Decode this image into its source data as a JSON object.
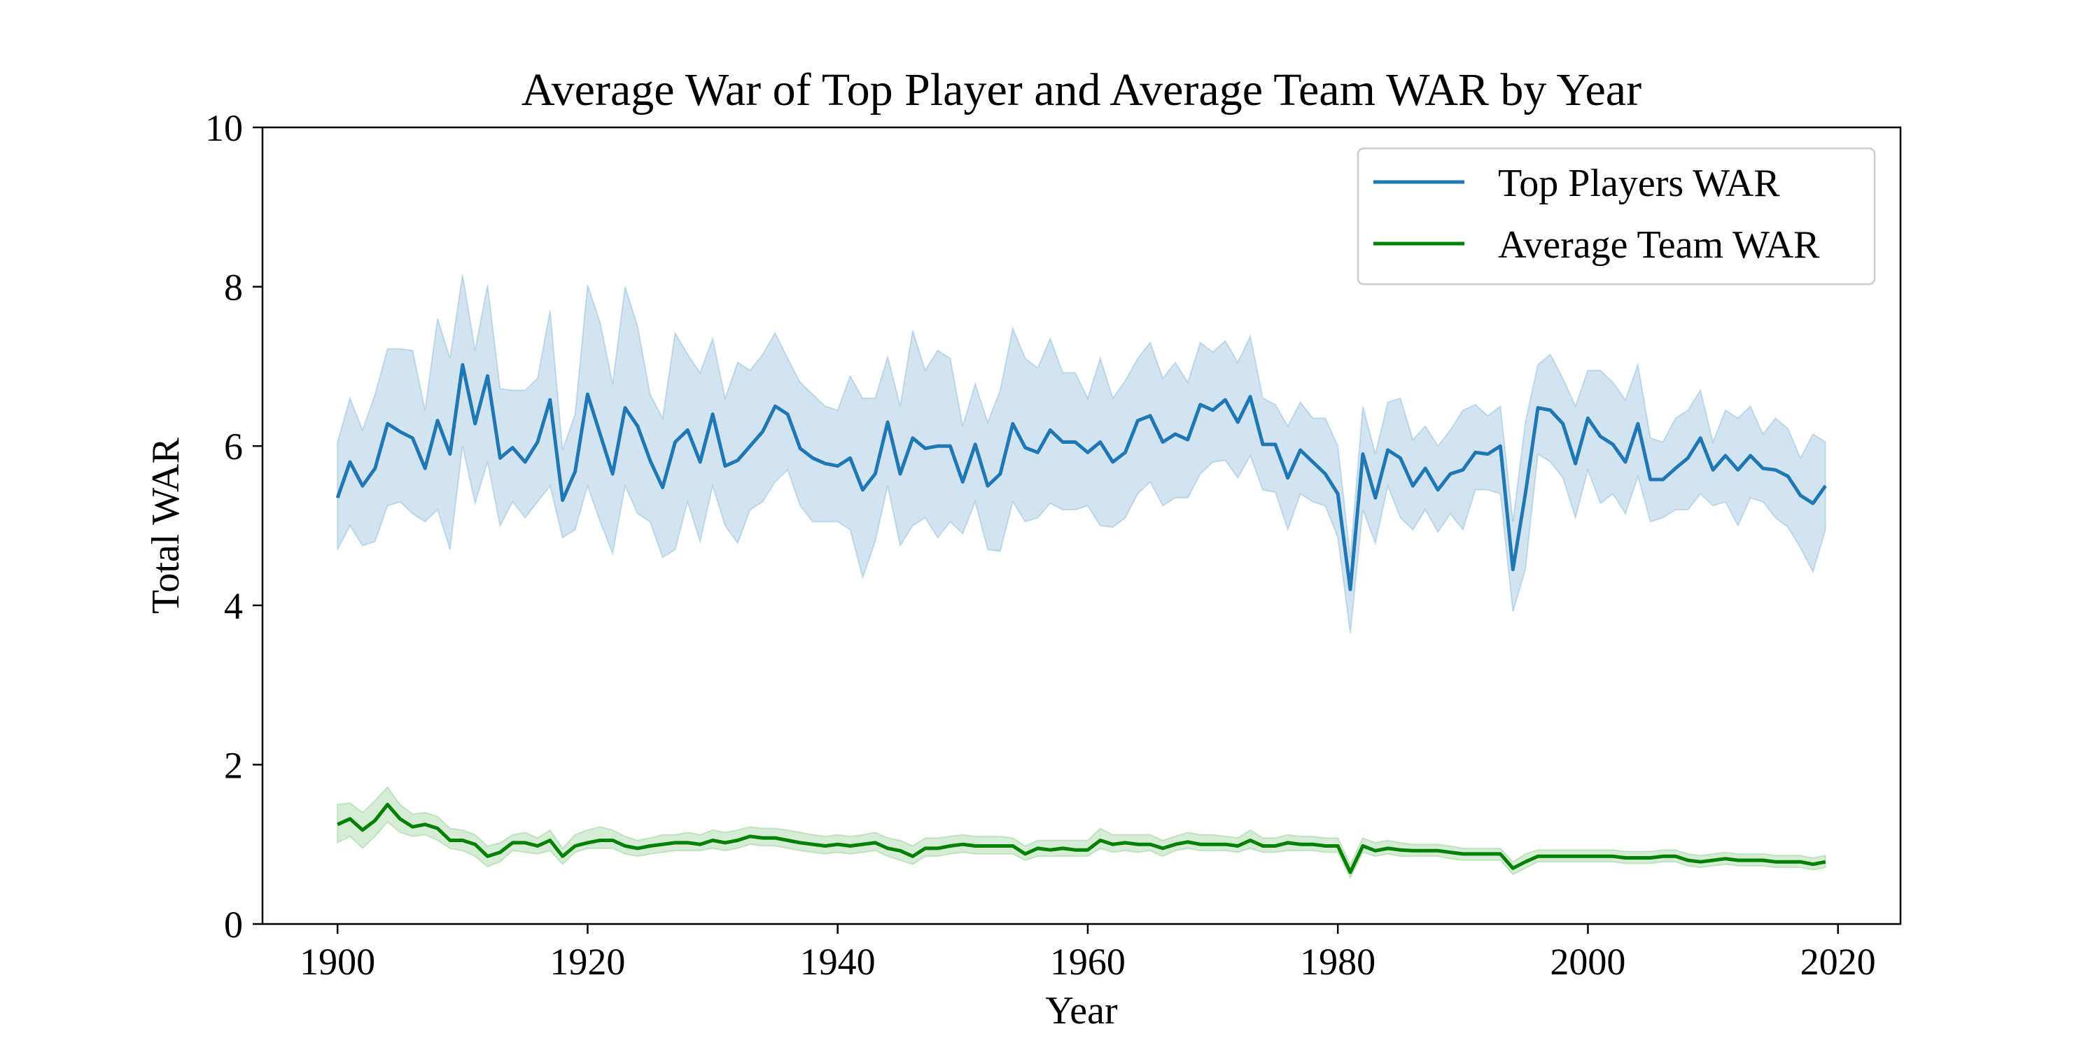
{
  "chart_data": {
    "type": "line",
    "title": "Average War of Top Player and Average Team WAR by Year",
    "xlabel": "Year",
    "ylabel": "Total WAR",
    "xlim": [
      1894,
      2025
    ],
    "ylim": [
      0,
      10
    ],
    "xticks": [
      1900,
      1920,
      1940,
      1960,
      1980,
      2000,
      2020
    ],
    "yticks": [
      0,
      2,
      4,
      6,
      8,
      10
    ],
    "grid": false,
    "legend": {
      "placement": "top-right",
      "entries": [
        "Top Players WAR",
        "Average Team WAR"
      ]
    },
    "x": [
      1900,
      1901,
      1902,
      1903,
      1904,
      1905,
      1906,
      1907,
      1908,
      1909,
      1910,
      1911,
      1912,
      1913,
      1914,
      1915,
      1916,
      1917,
      1918,
      1919,
      1920,
      1921,
      1922,
      1923,
      1924,
      1925,
      1926,
      1927,
      1928,
      1929,
      1930,
      1931,
      1932,
      1933,
      1934,
      1935,
      1936,
      1937,
      1938,
      1939,
      1940,
      1941,
      1942,
      1943,
      1944,
      1945,
      1946,
      1947,
      1948,
      1949,
      1950,
      1951,
      1952,
      1953,
      1954,
      1955,
      1956,
      1957,
      1958,
      1959,
      1960,
      1961,
      1962,
      1963,
      1964,
      1965,
      1966,
      1967,
      1968,
      1969,
      1970,
      1971,
      1972,
      1973,
      1974,
      1975,
      1976,
      1977,
      1978,
      1979,
      1980,
      1981,
      1982,
      1983,
      1984,
      1985,
      1986,
      1987,
      1988,
      1989,
      1990,
      1991,
      1992,
      1993,
      1994,
      1995,
      1996,
      1997,
      1998,
      1999,
      2000,
      2001,
      2002,
      2003,
      2004,
      2005,
      2006,
      2007,
      2008,
      2009,
      2010,
      2011,
      2012,
      2013,
      2014,
      2015,
      2016,
      2017,
      2018,
      2019
    ],
    "series": [
      {
        "name": "Top Players WAR",
        "color": "#1f77b4",
        "band_color": "#1f77b4",
        "values": [
          5.35,
          5.8,
          5.5,
          5.72,
          6.28,
          6.18,
          6.1,
          5.72,
          6.32,
          5.9,
          7.02,
          6.28,
          6.88,
          5.85,
          5.98,
          5.8,
          6.05,
          6.58,
          5.32,
          5.68,
          6.65,
          6.15,
          5.65,
          6.48,
          6.25,
          5.82,
          5.48,
          6.05,
          6.2,
          5.8,
          6.4,
          5.75,
          5.82,
          6.0,
          6.18,
          6.5,
          6.4,
          5.97,
          5.85,
          5.78,
          5.75,
          5.85,
          5.45,
          5.65,
          6.3,
          5.65,
          6.1,
          5.97,
          6.0,
          6.0,
          5.55,
          6.02,
          5.5,
          5.65,
          6.28,
          5.98,
          5.92,
          6.2,
          6.05,
          6.05,
          5.92,
          6.05,
          5.8,
          5.92,
          6.32,
          6.38,
          6.05,
          6.15,
          6.08,
          6.52,
          6.45,
          6.58,
          6.3,
          6.62,
          6.02,
          6.02,
          5.6,
          5.95,
          5.8,
          5.65,
          5.4,
          4.2,
          5.9,
          5.35,
          5.95,
          5.85,
          5.5,
          5.72,
          5.45,
          5.65,
          5.7,
          5.92,
          5.9,
          6.0,
          4.45,
          5.4,
          6.48,
          6.45,
          6.28,
          5.78,
          6.35,
          6.12,
          6.02,
          5.8,
          6.28,
          5.58,
          5.58,
          5.72,
          5.85,
          6.1,
          5.7,
          5.88,
          5.7,
          5.88,
          5.72,
          5.7,
          5.62,
          5.38,
          5.28,
          5.5
        ],
        "lower": [
          4.7,
          5.0,
          4.75,
          4.8,
          5.25,
          5.3,
          5.15,
          5.05,
          5.2,
          4.7,
          6.0,
          5.28,
          5.8,
          5.0,
          5.3,
          5.1,
          5.3,
          5.5,
          4.85,
          4.95,
          5.5,
          5.05,
          4.65,
          5.5,
          5.15,
          5.05,
          4.6,
          4.7,
          5.3,
          4.8,
          5.5,
          5.0,
          4.78,
          5.2,
          5.3,
          5.55,
          5.7,
          5.25,
          5.05,
          5.05,
          5.05,
          4.95,
          4.35,
          4.8,
          5.5,
          4.75,
          5.0,
          5.1,
          4.85,
          5.05,
          4.9,
          5.3,
          4.7,
          4.68,
          5.3,
          5.05,
          5.1,
          5.28,
          5.2,
          5.2,
          5.25,
          5.0,
          4.98,
          5.1,
          5.4,
          5.55,
          5.25,
          5.35,
          5.35,
          5.65,
          5.8,
          5.82,
          5.6,
          5.88,
          5.45,
          5.42,
          4.95,
          5.4,
          5.3,
          5.25,
          4.85,
          3.65,
          5.2,
          4.78,
          5.5,
          5.1,
          4.95,
          5.2,
          4.92,
          5.15,
          4.95,
          5.45,
          5.45,
          5.4,
          3.92,
          4.45,
          5.9,
          5.8,
          5.6,
          5.1,
          5.7,
          5.28,
          5.4,
          5.15,
          5.62,
          5.05,
          5.1,
          5.2,
          5.2,
          5.4,
          5.25,
          5.3,
          5.0,
          5.35,
          5.3,
          5.1,
          4.98,
          4.72,
          4.42,
          4.95
        ],
        "upper": [
          6.05,
          6.6,
          6.2,
          6.65,
          7.22,
          7.22,
          7.2,
          6.45,
          7.6,
          7.1,
          8.15,
          7.2,
          8.02,
          6.72,
          6.7,
          6.7,
          6.85,
          7.7,
          5.95,
          6.4,
          8.02,
          7.55,
          6.78,
          8.0,
          7.5,
          6.65,
          6.35,
          7.42,
          7.15,
          6.92,
          7.35,
          6.6,
          7.05,
          6.95,
          7.15,
          7.42,
          7.1,
          6.8,
          6.65,
          6.5,
          6.45,
          6.88,
          6.6,
          6.6,
          7.12,
          6.5,
          7.45,
          6.95,
          7.2,
          7.1,
          6.25,
          6.78,
          6.3,
          6.7,
          7.48,
          7.1,
          6.98,
          7.35,
          6.92,
          6.92,
          6.6,
          7.1,
          6.6,
          6.82,
          7.1,
          7.3,
          6.85,
          7.05,
          6.8,
          7.3,
          7.18,
          7.32,
          7.05,
          7.38,
          6.6,
          6.52,
          6.25,
          6.55,
          6.35,
          6.35,
          6.0,
          4.6,
          6.5,
          5.9,
          6.55,
          6.6,
          6.08,
          6.25,
          6.0,
          6.2,
          6.45,
          6.52,
          6.38,
          6.5,
          5.05,
          6.3,
          7.02,
          7.15,
          6.85,
          6.5,
          6.95,
          6.95,
          6.8,
          6.58,
          7.02,
          6.1,
          6.05,
          6.35,
          6.45,
          6.7,
          6.05,
          6.45,
          6.35,
          6.5,
          6.15,
          6.35,
          6.22,
          5.85,
          6.15,
          6.05
        ]
      },
      {
        "name": "Average Team WAR",
        "color": "#008000",
        "band_color": "#2ca02c",
        "values": [
          1.25,
          1.32,
          1.18,
          1.3,
          1.5,
          1.32,
          1.22,
          1.25,
          1.2,
          1.05,
          1.05,
          1.0,
          0.85,
          0.9,
          1.02,
          1.02,
          0.98,
          1.05,
          0.85,
          0.98,
          1.02,
          1.05,
          1.05,
          0.98,
          0.95,
          0.98,
          1.0,
          1.02,
          1.02,
          1.0,
          1.05,
          1.02,
          1.05,
          1.1,
          1.08,
          1.08,
          1.05,
          1.02,
          1.0,
          0.98,
          1.0,
          0.98,
          1.0,
          1.02,
          0.95,
          0.92,
          0.85,
          0.95,
          0.95,
          0.98,
          1.0,
          0.98,
          0.98,
          0.98,
          0.98,
          0.88,
          0.95,
          0.93,
          0.95,
          0.93,
          0.93,
          1.05,
          1.0,
          1.02,
          1.0,
          1.0,
          0.95,
          1.0,
          1.03,
          1.0,
          1.0,
          1.0,
          0.98,
          1.05,
          0.98,
          0.98,
          1.02,
          1.0,
          1.0,
          0.98,
          0.98,
          0.65,
          0.98,
          0.92,
          0.95,
          0.93,
          0.92,
          0.92,
          0.92,
          0.9,
          0.88,
          0.88,
          0.88,
          0.88,
          0.7,
          0.78,
          0.85,
          0.85,
          0.85,
          0.85,
          0.85,
          0.85,
          0.85,
          0.83,
          0.83,
          0.83,
          0.85,
          0.85,
          0.8,
          0.78,
          0.8,
          0.82,
          0.8,
          0.8,
          0.8,
          0.78,
          0.78,
          0.78,
          0.75,
          0.78
        ],
        "lower": [
          1.02,
          1.1,
          0.95,
          1.1,
          1.28,
          1.15,
          1.1,
          1.12,
          1.05,
          0.95,
          0.92,
          0.85,
          0.72,
          0.78,
          0.92,
          0.9,
          0.88,
          0.92,
          0.75,
          0.9,
          0.95,
          0.95,
          0.95,
          0.88,
          0.85,
          0.88,
          0.9,
          0.92,
          0.92,
          0.92,
          0.95,
          0.92,
          0.95,
          1.0,
          0.98,
          0.98,
          0.95,
          0.92,
          0.9,
          0.88,
          0.9,
          0.88,
          0.9,
          0.92,
          0.85,
          0.8,
          0.75,
          0.85,
          0.85,
          0.88,
          0.9,
          0.88,
          0.88,
          0.88,
          0.88,
          0.8,
          0.85,
          0.85,
          0.85,
          0.85,
          0.85,
          0.95,
          0.9,
          0.92,
          0.9,
          0.92,
          0.85,
          0.92,
          0.95,
          0.92,
          0.92,
          0.92,
          0.9,
          0.95,
          0.9,
          0.9,
          0.92,
          0.92,
          0.92,
          0.9,
          0.9,
          0.58,
          0.9,
          0.85,
          0.88,
          0.85,
          0.85,
          0.85,
          0.85,
          0.82,
          0.8,
          0.8,
          0.8,
          0.8,
          0.62,
          0.7,
          0.78,
          0.78,
          0.78,
          0.78,
          0.78,
          0.78,
          0.78,
          0.76,
          0.76,
          0.76,
          0.78,
          0.78,
          0.73,
          0.71,
          0.73,
          0.75,
          0.73,
          0.73,
          0.73,
          0.71,
          0.71,
          0.71,
          0.68,
          0.71
        ],
        "upper": [
          1.5,
          1.52,
          1.4,
          1.55,
          1.72,
          1.5,
          1.38,
          1.4,
          1.35,
          1.2,
          1.18,
          1.12,
          0.98,
          1.02,
          1.12,
          1.15,
          1.08,
          1.18,
          0.95,
          1.12,
          1.18,
          1.22,
          1.18,
          1.1,
          1.05,
          1.08,
          1.12,
          1.12,
          1.15,
          1.12,
          1.18,
          1.15,
          1.18,
          1.22,
          1.2,
          1.2,
          1.18,
          1.15,
          1.12,
          1.1,
          1.12,
          1.1,
          1.12,
          1.15,
          1.08,
          1.05,
          0.98,
          1.08,
          1.08,
          1.1,
          1.12,
          1.1,
          1.1,
          1.1,
          1.08,
          0.98,
          1.05,
          1.05,
          1.05,
          1.05,
          1.05,
          1.2,
          1.12,
          1.12,
          1.12,
          1.12,
          1.05,
          1.1,
          1.15,
          1.12,
          1.12,
          1.1,
          1.08,
          1.18,
          1.08,
          1.08,
          1.12,
          1.1,
          1.1,
          1.08,
          1.08,
          0.75,
          1.08,
          1.02,
          1.05,
          1.02,
          1.0,
          1.0,
          1.0,
          0.98,
          0.95,
          0.95,
          0.95,
          0.95,
          0.78,
          0.88,
          0.93,
          0.93,
          0.93,
          0.93,
          0.93,
          0.93,
          0.93,
          0.91,
          0.91,
          0.91,
          0.93,
          0.93,
          0.88,
          0.86,
          0.88,
          0.9,
          0.88,
          0.88,
          0.88,
          0.86,
          0.86,
          0.86,
          0.83,
          0.86
        ]
      }
    ]
  }
}
